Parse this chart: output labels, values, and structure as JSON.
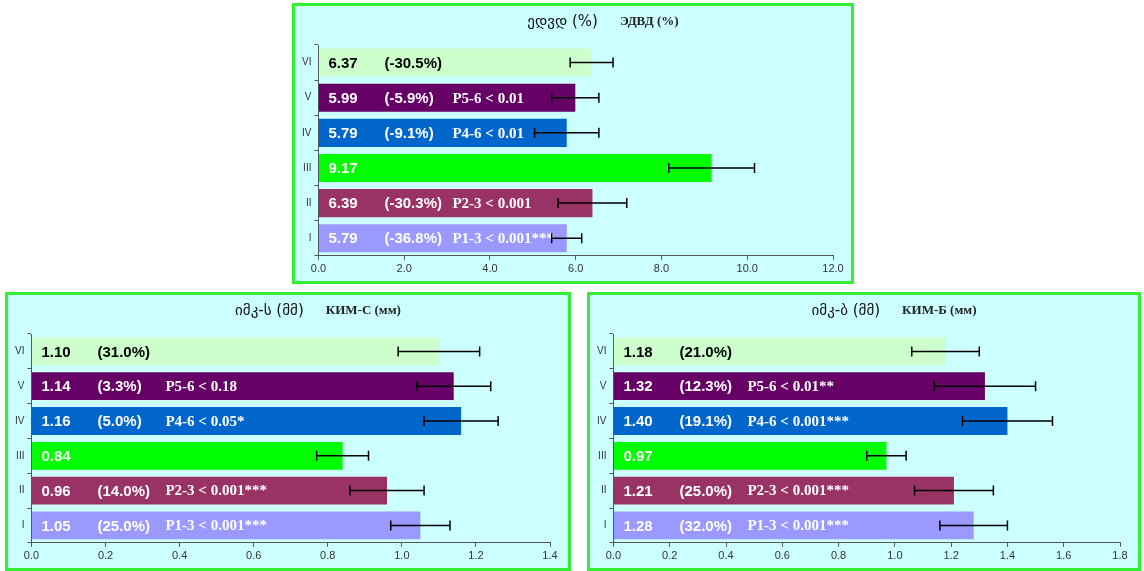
{
  "chart_data": [
    {
      "type": "bar",
      "orientation": "horizontal",
      "title": "ედვდ  (%)",
      "subtitle": "ЭДВД (%)",
      "categories": [
        "VI",
        "V",
        "IV",
        "III",
        "II",
        "I"
      ],
      "values": [
        6.37,
        5.99,
        5.79,
        9.17,
        6.39,
        5.79
      ],
      "value_labels": [
        "6.37  (-30.5%)",
        "5.99  (-5.9%)  P5-6 < 0.01",
        "5.79  (-9.1%)  P4-6 < 0.01",
        "9.17",
        "6.39  (-30.3%)  P2-3 < 0.001",
        "5.79  (-36.8%)  P1-3 < 0.001***"
      ],
      "colors": [
        "#ccffcc",
        "#660066",
        "#0066cc",
        "#00ff00",
        "#993366",
        "#9999ff"
      ],
      "errors": [
        0.5,
        0.55,
        0.75,
        1.0,
        0.8,
        0.35
      ],
      "xlim": [
        0,
        12
      ],
      "xticks": [
        {
          "value": 0,
          "label": "0.0"
        },
        {
          "value": 2,
          "label": "2.0"
        },
        {
          "value": 4,
          "label": "4.0"
        },
        {
          "value": 6,
          "label": "6.0"
        },
        {
          "value": 8,
          "label": "8.0"
        },
        {
          "value": 10,
          "label": "10.0"
        },
        {
          "value": 12,
          "label": "12.0"
        }
      ]
    },
    {
      "type": "bar",
      "orientation": "horizontal",
      "title": "იმკ-ს  (მმ)",
      "subtitle": "КИМ-С (мм)",
      "categories": [
        "VI",
        "V",
        "IV",
        "III",
        "II",
        "I"
      ],
      "values": [
        1.1,
        1.14,
        1.16,
        0.84,
        0.96,
        1.05
      ],
      "value_labels": [
        "1.10  (31.0%)",
        "1.14  (3.3%)  P5-6 < 0.18",
        "1.16  (5.0%)  P4-6 < 0.05*",
        "0.84",
        "0.96  (14.0%)  P2-3 < 0.001***",
        "1.05  (25.0%)  P1-3 < 0.001***"
      ],
      "colors": [
        "#ccffcc",
        "#660066",
        "#0066cc",
        "#00ff00",
        "#993366",
        "#9999ff"
      ],
      "errors": [
        0.11,
        0.1,
        0.1,
        0.07,
        0.1,
        0.08
      ],
      "xlim": [
        0,
        1.4
      ],
      "xticks": [
        {
          "value": 0,
          "label": "0.0"
        },
        0.2,
        0.4,
        0.6,
        0.8,
        {
          "value": 1,
          "label": "1.0"
        },
        1.2,
        1.4
      ]
    },
    {
      "type": "bar",
      "orientation": "horizontal",
      "title": "იმკ-ბ  (მმ)",
      "subtitle": "КИМ-Б (мм)",
      "categories": [
        "VI",
        "V",
        "IV",
        "III",
        "II",
        "I"
      ],
      "values": [
        1.18,
        1.32,
        1.4,
        0.97,
        1.21,
        1.28
      ],
      "value_labels": [
        "1.18  (21.0%)",
        "1.32  (12.3%)  P5-6 < 0.01**",
        "1.40  (19.1%)  P4-6 < 0.001***",
        "0.97",
        "1.21  (25.0%)  P2-3 < 0.001***",
        "1.28  (32.0%)  P1-3 < 0.001***"
      ],
      "colors": [
        "#ccffcc",
        "#660066",
        "#0066cc",
        "#00ff00",
        "#993366",
        "#9999ff"
      ],
      "errors": [
        0.12,
        0.18,
        0.16,
        0.07,
        0.14,
        0.12
      ],
      "xlim": [
        0,
        1.8
      ],
      "xticks": [
        {
          "value": 0,
          "label": "0.0"
        },
        0.2,
        0.4,
        0.6,
        0.8,
        {
          "value": 1,
          "label": "1.0"
        },
        1.2,
        1.4,
        1.6,
        1.8
      ]
    }
  ]
}
